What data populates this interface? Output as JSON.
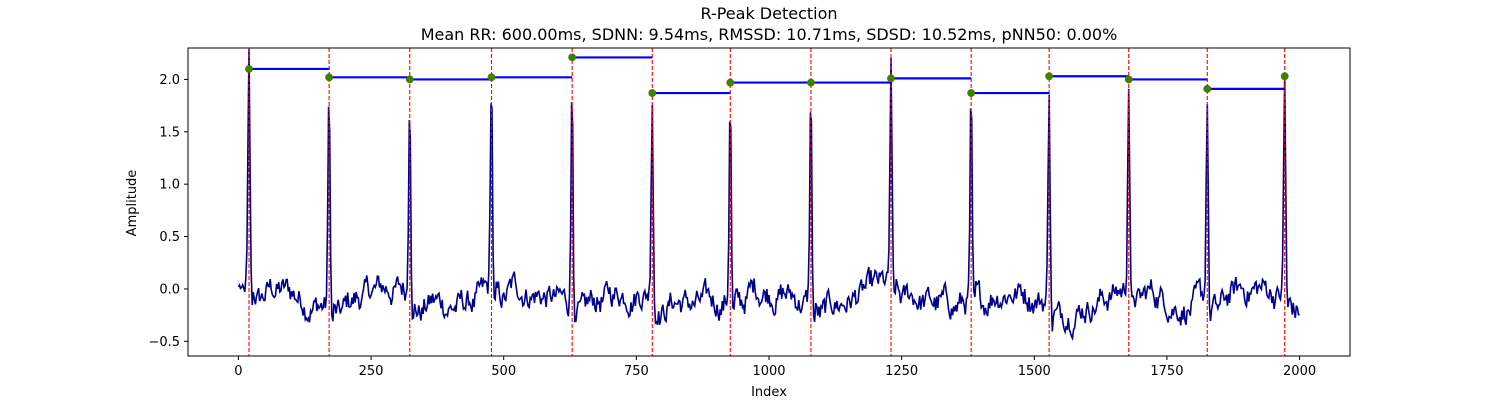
{
  "chart_data": {
    "type": "line",
    "title": "R-Peak Detection",
    "subtitle": "Mean RR: 600.00ms, SDNN: 9.54ms, RMSSD: 10.71ms, SDSD: 10.52ms, pNN50: 0.00%",
    "xlabel": "Index",
    "ylabel": "Amplitude",
    "xlim": [
      -95,
      2095
    ],
    "ylim": [
      -0.64,
      2.3
    ],
    "xticks": [
      0,
      250,
      500,
      750,
      1000,
      1250,
      1500,
      1750,
      2000
    ],
    "xtick_labels": [
      "0",
      "250",
      "500",
      "750",
      "1000",
      "1250",
      "1500",
      "1750",
      "2000"
    ],
    "yticks": [
      -0.5,
      0.0,
      0.5,
      1.0,
      1.5,
      2.0
    ],
    "ytick_labels": [
      "−0.5",
      "0.0",
      "0.5",
      "1.0",
      "1.5",
      "2.0"
    ],
    "grid": false,
    "colors": {
      "signal": "#00008b",
      "peak_lines": "#ff0000",
      "peak_markers": "#2e8b00",
      "rr_segments": "#0000ff"
    },
    "r_peaks": {
      "x": [
        20,
        171,
        323,
        477,
        629,
        780,
        927,
        1079,
        1230,
        1381,
        1528,
        1678,
        1826,
        1972
      ],
      "y": [
        2.1,
        2.02,
        2.0,
        2.02,
        2.21,
        1.87,
        1.97,
        1.97,
        2.01,
        1.87,
        2.03,
        2.0,
        1.91,
        2.03
      ]
    },
    "signal_x_range": [
      0,
      2000
    ]
  }
}
